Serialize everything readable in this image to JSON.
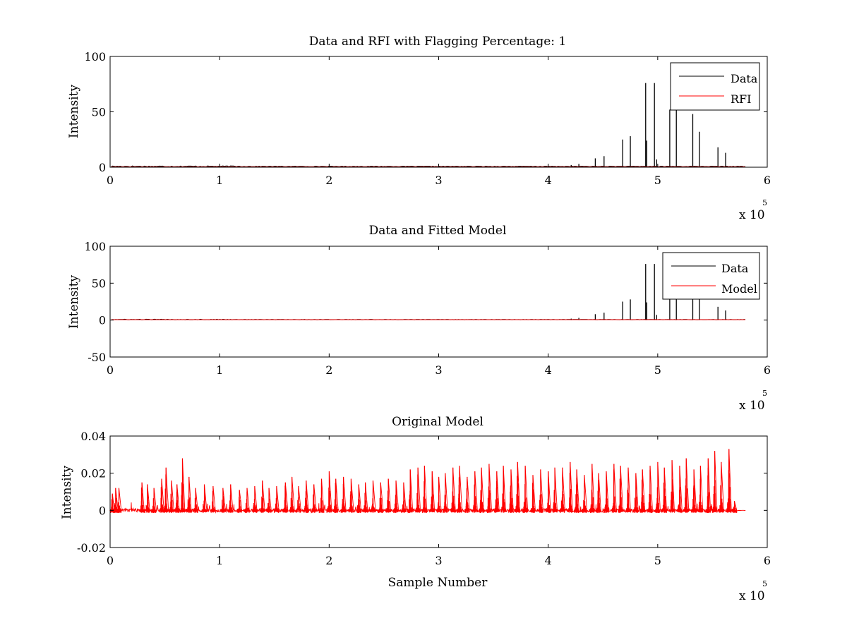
{
  "chart_data": [
    {
      "type": "line",
      "title": "Data and RFI with Flagging Percentage: 1",
      "xlabel": "",
      "ylabel": "Intensity",
      "xlim": [
        0,
        600000
      ],
      "ylim": [
        0,
        100
      ],
      "xticks": [
        0,
        1,
        2,
        3,
        4,
        5,
        6
      ],
      "yticks": [
        "0",
        "50",
        "100"
      ],
      "yticks_values": [
        0,
        50,
        100
      ],
      "x_multiplier": "x 10",
      "x_multiplier_exp": "5",
      "legend": {
        "position": "top-right",
        "entries": [
          "Data",
          "RFI"
        ]
      },
      "series": [
        {
          "name": "Data",
          "color": "#000000",
          "baseline": 0.6,
          "spikes": [
            [
              421000,
              2
            ],
            [
              428000,
              3
            ],
            [
              443000,
              8
            ],
            [
              451000,
              10
            ],
            [
              468000,
              25
            ],
            [
              475000,
              28
            ],
            [
              489000,
              76
            ],
            [
              490000,
              24
            ],
            [
              497000,
              76
            ],
            [
              499000,
              7
            ],
            [
              511000,
              52
            ],
            [
              517000,
              52
            ],
            [
              532000,
              48
            ],
            [
              538000,
              32
            ],
            [
              555000,
              18
            ],
            [
              562000,
              13
            ]
          ]
        },
        {
          "name": "RFI",
          "color": "#ff0000",
          "baseline": 0.3,
          "spikes": []
        }
      ]
    },
    {
      "type": "line",
      "title": "Data and Fitted Model",
      "xlabel": "",
      "ylabel": "Intensity",
      "xlim": [
        0,
        600000
      ],
      "ylim": [
        -50,
        100
      ],
      "xticks": [
        0,
        1,
        2,
        3,
        4,
        5,
        6
      ],
      "yticks": [
        "-50",
        "0",
        "50",
        "100"
      ],
      "yticks_values": [
        -50,
        0,
        50,
        100
      ],
      "x_multiplier": "x 10",
      "x_multiplier_exp": "5",
      "legend": {
        "position": "top-right",
        "entries": [
          "Data",
          "Model"
        ]
      },
      "series": [
        {
          "name": "Data",
          "color": "#000000",
          "baseline": 0.6,
          "spikes": [
            [
              421000,
              2
            ],
            [
              428000,
              3
            ],
            [
              443000,
              8
            ],
            [
              451000,
              10
            ],
            [
              468000,
              25
            ],
            [
              475000,
              28
            ],
            [
              489000,
              76
            ],
            [
              490000,
              24
            ],
            [
              497000,
              76
            ],
            [
              499000,
              7
            ],
            [
              511000,
              52
            ],
            [
              517000,
              52
            ],
            [
              532000,
              48
            ],
            [
              538000,
              32
            ],
            [
              555000,
              18
            ],
            [
              562000,
              13
            ]
          ]
        },
        {
          "name": "Model",
          "color": "#ff0000",
          "baseline": 0.5,
          "spikes": []
        }
      ]
    },
    {
      "type": "line",
      "title": "Original Model",
      "xlabel": "Sample Number",
      "ylabel": "Intensity",
      "xlim": [
        0,
        600000
      ],
      "ylim": [
        -0.02,
        0.04
      ],
      "xticks": [
        0,
        1,
        2,
        3,
        4,
        5,
        6
      ],
      "yticks": [
        "-0.02",
        "0",
        "0.02",
        "0.04"
      ],
      "yticks_values": [
        -0.02,
        0,
        0.02,
        0.04
      ],
      "x_multiplier": "x 10",
      "x_multiplier_exp": "5",
      "series": [
        {
          "color": "#ff0000",
          "x_end": 580000,
          "pulse_peaks": [
            [
              2000,
              0.009
            ],
            [
              5000,
              0.012
            ],
            [
              8000,
              0.012
            ],
            [
              29000,
              0.015
            ],
            [
              34000,
              0.014
            ],
            [
              40000,
              0.012
            ],
            [
              47000,
              0.017
            ],
            [
              51000,
              0.023
            ],
            [
              56000,
              0.016
            ],
            [
              61000,
              0.014
            ],
            [
              66000,
              0.028
            ],
            [
              72000,
              0.018
            ],
            [
              78000,
              0.012
            ],
            [
              86000,
              0.014
            ],
            [
              94000,
              0.013
            ],
            [
              103000,
              0.012
            ],
            [
              110000,
              0.014
            ],
            [
              118000,
              0.011
            ],
            [
              125000,
              0.012
            ],
            [
              132000,
              0.013
            ],
            [
              139000,
              0.016
            ],
            [
              145000,
              0.012
            ],
            [
              152000,
              0.013
            ],
            [
              160000,
              0.015
            ],
            [
              166000,
              0.018
            ],
            [
              172000,
              0.013
            ],
            [
              179000,
              0.016
            ],
            [
              186000,
              0.014
            ],
            [
              193000,
              0.017
            ],
            [
              200000,
              0.021
            ],
            [
              206000,
              0.017
            ],
            [
              213000,
              0.018
            ],
            [
              220000,
              0.017
            ],
            [
              227000,
              0.014
            ],
            [
              233000,
              0.015
            ],
            [
              240000,
              0.016
            ],
            [
              247000,
              0.015
            ],
            [
              254000,
              0.017
            ],
            [
              261000,
              0.016
            ],
            [
              268000,
              0.015
            ],
            [
              274000,
              0.022
            ],
            [
              281000,
              0.023
            ],
            [
              287000,
              0.024
            ],
            [
              294000,
              0.021
            ],
            [
              300000,
              0.018
            ],
            [
              306000,
              0.02
            ],
            [
              313000,
              0.023
            ],
            [
              319000,
              0.024
            ],
            [
              326000,
              0.018
            ],
            [
              333000,
              0.021
            ],
            [
              339000,
              0.023
            ],
            [
              346000,
              0.025
            ],
            [
              353000,
              0.021
            ],
            [
              359000,
              0.024
            ],
            [
              366000,
              0.022
            ],
            [
              372000,
              0.026
            ],
            [
              379000,
              0.024
            ],
            [
              386000,
              0.019
            ],
            [
              393000,
              0.022
            ],
            [
              400000,
              0.021
            ],
            [
              406000,
              0.023
            ],
            [
              413000,
              0.023
            ],
            [
              420000,
              0.026
            ],
            [
              426000,
              0.022
            ],
            [
              433000,
              0.019
            ],
            [
              440000,
              0.025
            ],
            [
              446000,
              0.02
            ],
            [
              453000,
              0.021
            ],
            [
              460000,
              0.025
            ],
            [
              466000,
              0.024
            ],
            [
              473000,
              0.023
            ],
            [
              480000,
              0.02
            ],
            [
              486000,
              0.022
            ],
            [
              493000,
              0.024
            ],
            [
              500000,
              0.026
            ],
            [
              506000,
              0.023
            ],
            [
              513000,
              0.027
            ],
            [
              520000,
              0.024
            ],
            [
              526000,
              0.028
            ],
            [
              533000,
              0.022
            ],
            [
              539000,
              0.024
            ],
            [
              546000,
              0.028
            ],
            [
              552000,
              0.032
            ],
            [
              558000,
              0.026
            ],
            [
              565000,
              0.033
            ],
            [
              570000,
              0.005
            ]
          ]
        }
      ]
    }
  ]
}
